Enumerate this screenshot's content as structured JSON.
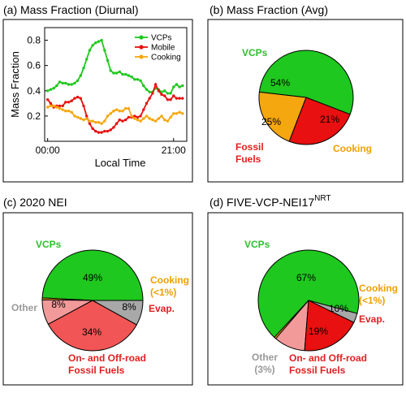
{
  "colors": {
    "vcps": "#1ec81e",
    "mobile": "#e81010",
    "cooking": "#f5a70f",
    "fossil": "#e81010",
    "fossil_light": "#f25555",
    "evap": "#f29a9a",
    "other": "#a8a8a8",
    "vcps_text": "#2fbf2f",
    "fossil_text": "#e02020",
    "cooking_text": "#f0a000",
    "other_text": "#999999",
    "evap_text": "#e02020"
  },
  "chart_data": [
    {
      "id": "a",
      "type": "line",
      "title": "(a) Mass Fraction (Diurnal)",
      "xlabel": "Local Time",
      "ylabel": "Mass Fraction",
      "xlim": [
        -0.5,
        23.2
      ],
      "ylim": [
        0.0,
        0.9
      ],
      "yticks": [
        0.2,
        0.4,
        0.6,
        0.8
      ],
      "ytick_labels": [
        "0.2",
        "0.4",
        "0.6",
        "0.8"
      ],
      "xticks": [
        0,
        21
      ],
      "xtick_labels": [
        "00:00",
        "21:00"
      ],
      "legend_position": "top-right",
      "x": [
        0,
        0.5,
        1,
        1.5,
        2,
        2.5,
        3,
        3.5,
        4,
        4.5,
        5,
        5.5,
        6,
        6.5,
        7,
        7.5,
        8,
        8.5,
        9,
        9.5,
        10,
        10.5,
        11,
        11.5,
        12,
        12.5,
        13,
        13.5,
        14,
        14.5,
        15,
        15.5,
        16,
        16.5,
        17,
        17.5,
        18,
        18.5,
        19,
        19.5,
        20,
        20.5,
        21,
        21.5,
        22,
        22.5
      ],
      "series": [
        {
          "name": "VCPs",
          "color_key": "vcps",
          "values": [
            0.4,
            0.41,
            0.42,
            0.44,
            0.47,
            0.46,
            0.46,
            0.45,
            0.45,
            0.46,
            0.48,
            0.52,
            0.58,
            0.65,
            0.72,
            0.76,
            0.78,
            0.79,
            0.8,
            0.72,
            0.64,
            0.56,
            0.54,
            0.54,
            0.55,
            0.53,
            0.53,
            0.52,
            0.51,
            0.49,
            0.49,
            0.48,
            0.44,
            0.41,
            0.39,
            0.39,
            0.42,
            0.41,
            0.39,
            0.4,
            0.38,
            0.38,
            0.43,
            0.45,
            0.43,
            0.44
          ]
        },
        {
          "name": "Mobile",
          "color_key": "mobile",
          "values": [
            0.33,
            0.3,
            0.27,
            0.28,
            0.28,
            0.28,
            0.31,
            0.31,
            0.32,
            0.34,
            0.35,
            0.34,
            0.28,
            0.2,
            0.14,
            0.1,
            0.08,
            0.07,
            0.07,
            0.08,
            0.08,
            0.09,
            0.11,
            0.14,
            0.17,
            0.16,
            0.17,
            0.19,
            0.19,
            0.2,
            0.19,
            0.2,
            0.25,
            0.3,
            0.34,
            0.38,
            0.45,
            0.4,
            0.37,
            0.36,
            0.33,
            0.33,
            0.36,
            0.34,
            0.34,
            0.34
          ]
        },
        {
          "name": "Cooking",
          "color_key": "cooking",
          "values": [
            0.27,
            0.28,
            0.28,
            0.27,
            0.26,
            0.25,
            0.24,
            0.24,
            0.23,
            0.2,
            0.19,
            0.18,
            0.17,
            0.18,
            0.16,
            0.16,
            0.15,
            0.15,
            0.14,
            0.16,
            0.2,
            0.22,
            0.24,
            0.25,
            0.24,
            0.24,
            0.26,
            0.26,
            0.2,
            0.18,
            0.17,
            0.16,
            0.18,
            0.2,
            0.18,
            0.17,
            0.16,
            0.18,
            0.2,
            0.17,
            0.16,
            0.19,
            0.22,
            0.22,
            0.23,
            0.22
          ]
        }
      ]
    },
    {
      "id": "b",
      "type": "pie",
      "title": "(b) Mass Fraction (Avg)",
      "slices": [
        {
          "key": "vcps",
          "label": "VCPs",
          "value": 54,
          "pct_label": "54%"
        },
        {
          "key": "cooking",
          "label": "Cooking",
          "value": 21,
          "pct_label": "21%"
        },
        {
          "key": "fossil",
          "label": "Fossil Fuels",
          "label_lines": [
            "Fossil",
            "Fuels"
          ],
          "value": 25,
          "pct_label": "25%"
        }
      ]
    },
    {
      "id": "c",
      "type": "pie",
      "title": "(c) 2020 NEI",
      "slices": [
        {
          "key": "vcps",
          "label": "VCPs",
          "value": 49,
          "pct_label": "49%"
        },
        {
          "key": "cooking",
          "label": "Cooking (<1%)",
          "label_lines": [
            "Cooking",
            "(<1%)"
          ],
          "value": 0.6,
          "pct_label": ""
        },
        {
          "key": "evap",
          "label": "Evap.",
          "value": 8,
          "pct_label": "8%"
        },
        {
          "key": "fossil_light",
          "label": "On- and Off-road Fossil Fuels",
          "label_lines": [
            "On- and Off-road",
            "Fossil Fuels"
          ],
          "value": 34,
          "pct_label": "34%"
        },
        {
          "key": "other",
          "label": "Other",
          "value": 8,
          "pct_label": "8%"
        }
      ]
    },
    {
      "id": "d",
      "type": "pie",
      "title": "(d) FIVE-VCP-NEI17",
      "title_superscript": "NRT",
      "slices": [
        {
          "key": "vcps",
          "label": "VCPs",
          "value": 67,
          "pct_label": "67%"
        },
        {
          "key": "cooking",
          "label": "Cooking (<1%)",
          "label_lines": [
            "Cooking",
            "(<1%)"
          ],
          "value": 0.6,
          "pct_label": ""
        },
        {
          "key": "evap",
          "label": "Evap.",
          "value": 10,
          "pct_label": "10%"
        },
        {
          "key": "fossil",
          "label": "On- and Off-road Fossil Fuels",
          "label_lines": [
            "On- and Off-road",
            "Fossil Fuels"
          ],
          "value": 19,
          "pct_label": "19%"
        },
        {
          "key": "other",
          "label": "Other (3%)",
          "label_lines": [
            "Other",
            "(3%)"
          ],
          "value": 3,
          "pct_label": ""
        }
      ]
    }
  ]
}
